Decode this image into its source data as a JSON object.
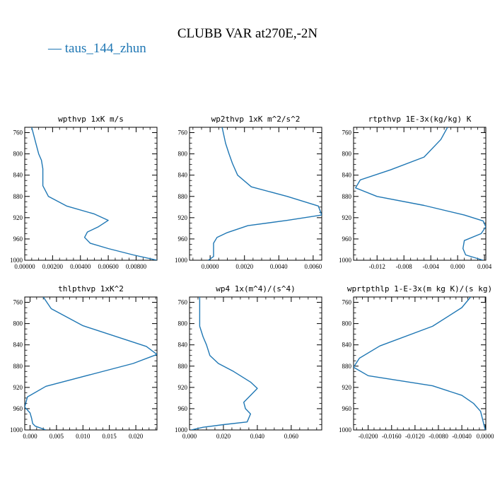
{
  "title": "CLUBB VAR at270E,-2N",
  "legend": {
    "marker": "—",
    "label": "taus_144_zhun",
    "color": "#1f77b4"
  },
  "chart_data": [
    {
      "type": "line",
      "title": "wpthvp  1xK m/s",
      "ylim": [
        1000,
        750
      ],
      "yticks": [
        760,
        800,
        840,
        880,
        920,
        960,
        1000
      ],
      "xlim": [
        0.0,
        0.0095
      ],
      "xticks": [
        0.0,
        0.002,
        0.004,
        0.006,
        0.008
      ],
      "xtick_labels": [
        "0.00000",
        "0.00200",
        "0.00400",
        "0.00600",
        "0.00800"
      ],
      "series": [
        {
          "x": [
            0.0005,
            0.0008,
            0.001,
            0.0012,
            0.0013,
            0.0013,
            0.0013,
            0.0017,
            0.003,
            0.005,
            0.006,
            0.0053,
            0.0045,
            0.0043,
            0.0047,
            0.006,
            0.0078,
            0.0095
          ],
          "y": [
            750,
            780,
            800,
            812,
            828,
            845,
            860,
            880,
            898,
            913,
            925,
            937,
            947,
            957,
            968,
            978,
            990,
            1000
          ]
        }
      ]
    },
    {
      "type": "line",
      "title": "wp2thvp  1xK m^2/s^2",
      "ylim": [
        1000,
        750
      ],
      "yticks": [
        760,
        800,
        840,
        880,
        920,
        960,
        1000
      ],
      "xlim": [
        -0.0012,
        0.0065
      ],
      "xticks": [
        0.0,
        0.002,
        0.004,
        0.006
      ],
      "xtick_labels": [
        "0.0000",
        "0.0020",
        "0.0040",
        "0.0060"
      ],
      "series": [
        {
          "x": [
            0.0007,
            0.0009,
            0.0011,
            0.0013,
            0.0016,
            0.0024,
            0.0045,
            0.0063,
            0.0065,
            0.0045,
            0.0022,
            0.001,
            0.0004,
            0.0002,
            0.0002,
            0.0002,
            -0.0001
          ],
          "y": [
            750,
            780,
            800,
            818,
            840,
            862,
            880,
            898,
            915,
            925,
            935,
            948,
            957,
            968,
            980,
            993,
            1000
          ]
        }
      ]
    },
    {
      "type": "line",
      "title": "rtpthvp  1E-3x(kg/kg) K",
      "ylim": [
        1000,
        750
      ],
      "yticks": [
        760,
        800,
        840,
        880,
        920,
        960,
        1000
      ],
      "xlim": [
        -0.0155,
        0.0042
      ],
      "xticks": [
        -0.012,
        -0.008,
        -0.004,
        0.0,
        0.004
      ],
      "xtick_labels": [
        "-0.012",
        "-0.008",
        "-0.004",
        "0.000",
        "0.004"
      ],
      "series": [
        {
          "x": [
            -0.0015,
            -0.0025,
            -0.005,
            -0.01,
            -0.0145,
            -0.0152,
            -0.012,
            -0.005,
            0.001,
            0.0038,
            0.0042,
            0.0035,
            0.001,
            0.0008,
            0.0012,
            0.0038
          ],
          "y": [
            750,
            773,
            806,
            830,
            849,
            864,
            880,
            897,
            915,
            926,
            937,
            950,
            963,
            978,
            990,
            1000
          ]
        }
      ]
    },
    {
      "type": "line",
      "title": "thlpthvp  1xK^2",
      "ylim": [
        1000,
        750
      ],
      "yticks": [
        760,
        800,
        840,
        880,
        920,
        960,
        1000
      ],
      "xlim": [
        -0.001,
        0.024
      ],
      "xticks": [
        0.0,
        0.005,
        0.01,
        0.015,
        0.02
      ],
      "xtick_labels": [
        "0.000",
        "0.005",
        "0.010",
        "0.015",
        "0.020"
      ],
      "series": [
        {
          "x": [
            0.0025,
            0.004,
            0.01,
            0.022,
            0.024,
            0.0195,
            0.003,
            -0.0005,
            -0.001,
            0.0,
            0.0003,
            0.0005,
            0.001,
            0.003
          ],
          "y": [
            750,
            772,
            804,
            843,
            858,
            875,
            918,
            938,
            957,
            968,
            978,
            988,
            993,
            1000
          ]
        }
      ]
    },
    {
      "type": "line",
      "title": "wp4  1x(m^4)/(s^4)",
      "ylim": [
        1000,
        750
      ],
      "yticks": [
        760,
        800,
        840,
        880,
        920,
        960,
        1000
      ],
      "xlim": [
        0.0,
        0.078
      ],
      "xticks": [
        0.0,
        0.02,
        0.04,
        0.06
      ],
      "xtick_labels": [
        "0.000",
        "0.020",
        "0.040",
        "0.060"
      ],
      "series": [
        {
          "x": [
            0.006,
            0.006,
            0.006,
            0.008,
            0.01,
            0.012,
            0.017,
            0.026,
            0.036,
            0.04,
            0.036,
            0.032,
            0.033,
            0.036,
            0.034,
            0.02,
            0.008,
            0.001
          ],
          "y": [
            750,
            790,
            805,
            825,
            840,
            860,
            875,
            890,
            910,
            922,
            935,
            948,
            960,
            970,
            985,
            990,
            995,
            1000
          ]
        }
      ]
    },
    {
      "type": "line",
      "title": "wprtpthlp   1-E-3x(m kg K)/(s kg)",
      "ylim": [
        1000,
        750
      ],
      "yticks": [
        760,
        800,
        840,
        880,
        920,
        960,
        1000
      ],
      "xlim": [
        -0.0225,
        0.0001
      ],
      "xticks": [
        -0.02,
        -0.016,
        -0.012,
        -0.008,
        -0.004,
        0.0
      ],
      "xtick_labels": [
        "-0.0200",
        "-0.0160",
        "-0.0120",
        "-0.0080",
        "-0.0040",
        "0.0000"
      ],
      "series": [
        {
          "x": [
            -0.0025,
            -0.004,
            -0.009,
            -0.018,
            -0.0215,
            -0.0225,
            -0.02,
            -0.009,
            -0.004,
            -0.002,
            -0.0008,
            0.0
          ],
          "y": [
            750,
            770,
            805,
            842,
            865,
            882,
            898,
            917,
            935,
            950,
            965,
            1000
          ]
        }
      ]
    }
  ]
}
